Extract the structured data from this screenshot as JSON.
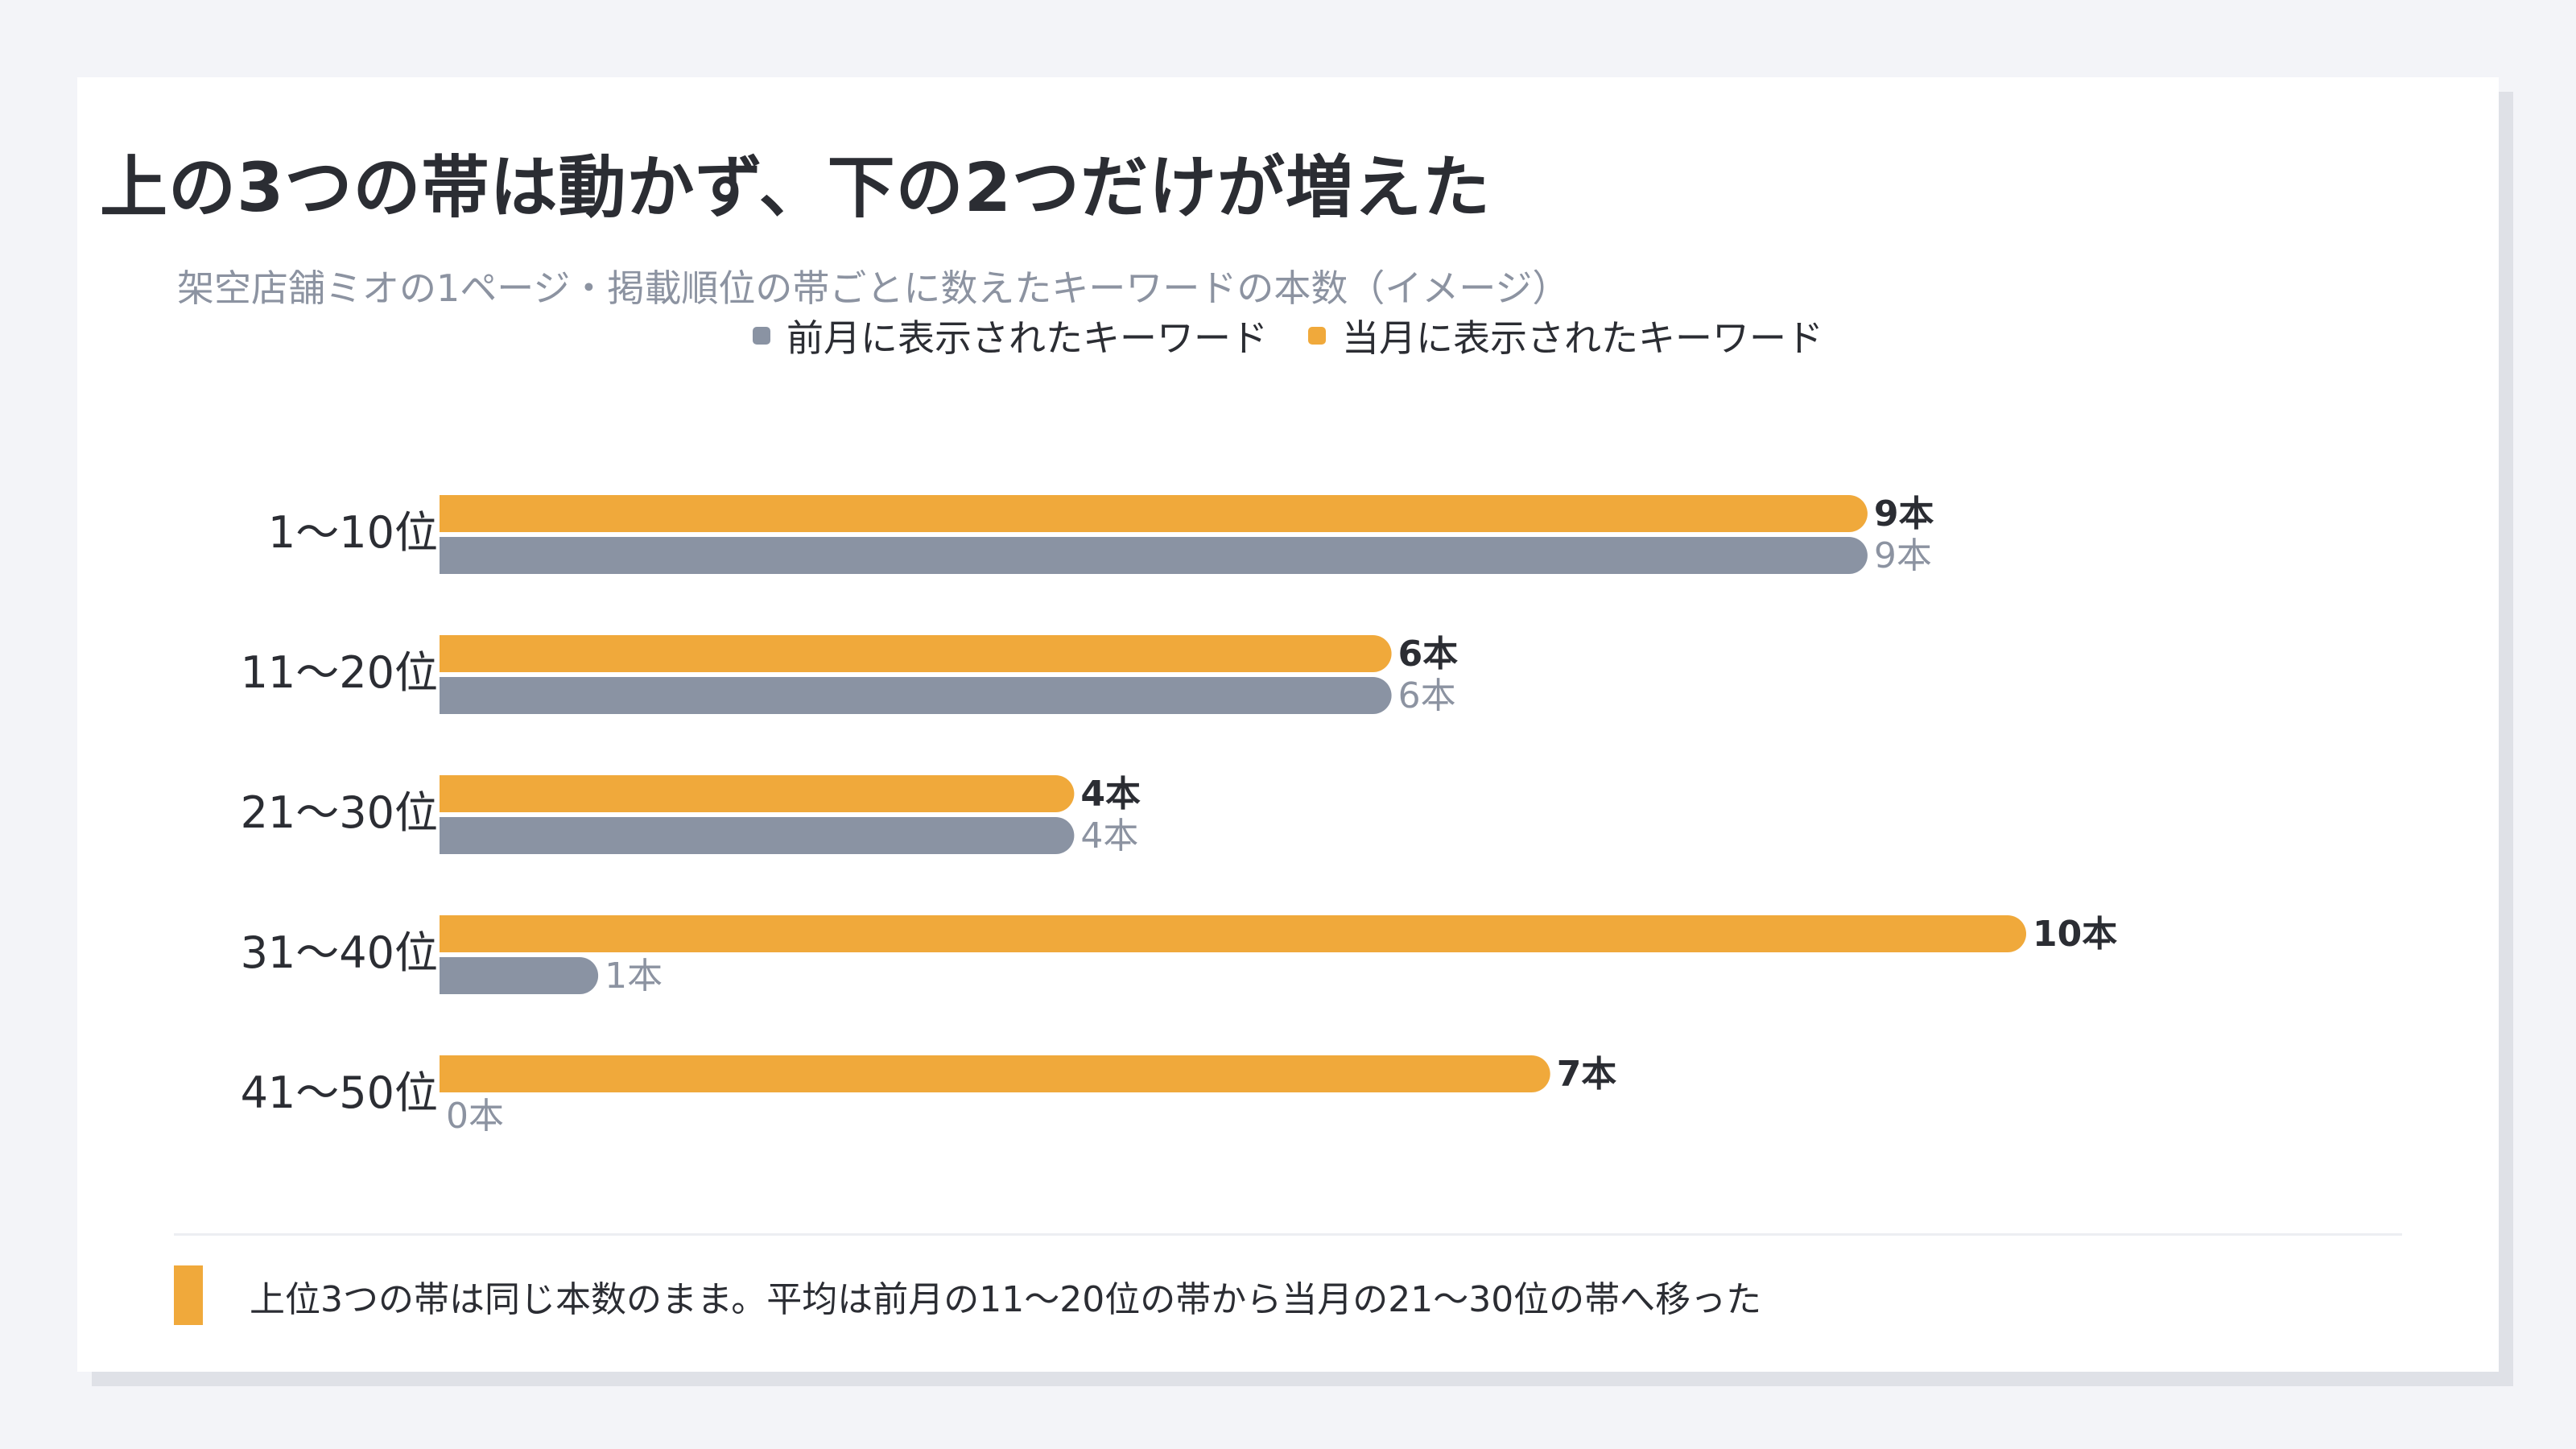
{
  "title": "上の3つの帯は動かず、下の2つだけが増えた",
  "subtitle": "架空店舗ミオの1ページ・掲載順位の帯ごとに数えたキーワードの本数（イメージ）",
  "legend": {
    "previous": "前月に表示されたキーワード",
    "current": "当月に表示されたキーワード"
  },
  "colors": {
    "previous": "#8a93a3",
    "current": "#f0a93b",
    "background": "#f3f4f8",
    "card": "#ffffff"
  },
  "chart_data": {
    "type": "bar",
    "orientation": "horizontal",
    "categories": [
      "1〜10位",
      "11〜20位",
      "21〜30位",
      "31〜40位",
      "41〜50位"
    ],
    "series": [
      {
        "name": "当月に表示されたキーワード",
        "key": "current",
        "values": [
          9,
          6,
          4,
          10,
          7
        ]
      },
      {
        "name": "前月に表示されたキーワード",
        "key": "previous",
        "values": [
          9,
          6,
          4,
          1,
          0
        ]
      }
    ],
    "value_suffix": "本",
    "xlim": [
      0,
      10
    ],
    "grid": false,
    "legend_position": "top-center"
  },
  "note": "上位3つの帯は同じ本数のまま。平均は前月の11〜20位の帯から当月の21〜30位の帯へ移った"
}
